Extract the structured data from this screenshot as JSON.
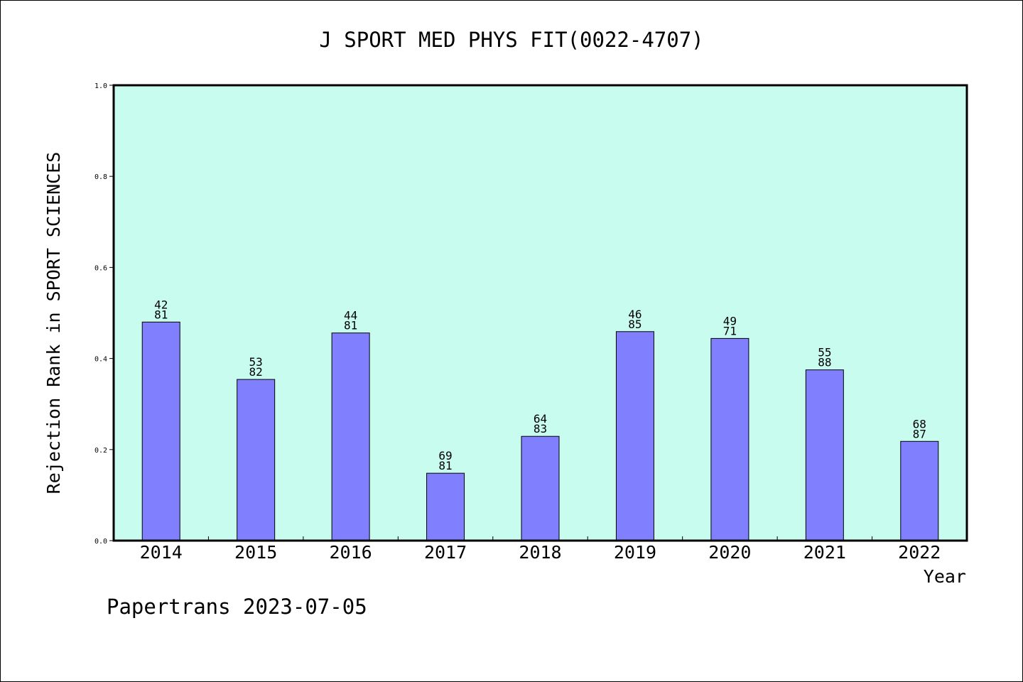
{
  "chart_data": {
    "type": "bar",
    "title": "J SPORT MED PHYS FIT(0022-4707)",
    "xlabel": "Year",
    "ylabel": "Rejection Rank in SPORT SCIENCES",
    "ylim": [
      0,
      1.0
    ],
    "yticks": [
      "0.0",
      "0.2",
      "0.4",
      "0.6",
      "0.8",
      "1.0"
    ],
    "grid": false,
    "categories": [
      "2014",
      "2015",
      "2016",
      "2017",
      "2018",
      "2019",
      "2020",
      "2021",
      "2022"
    ],
    "values": [
      0.48,
      0.354,
      0.456,
      0.148,
      0.229,
      0.459,
      0.444,
      0.375,
      0.218
    ],
    "labels_top": [
      "42",
      "53",
      "44",
      "69",
      "64",
      "46",
      "49",
      "55",
      "68"
    ],
    "labels_bottom": [
      "81",
      "82",
      "81",
      "81",
      "83",
      "85",
      "71",
      "88",
      "87"
    ],
    "colors": {
      "plot_background": "#c8fcee",
      "bar_fill": "#8080ff",
      "bar_stroke": "#000000"
    }
  },
  "footer": {
    "text": "Papertrans 2023-07-05"
  }
}
